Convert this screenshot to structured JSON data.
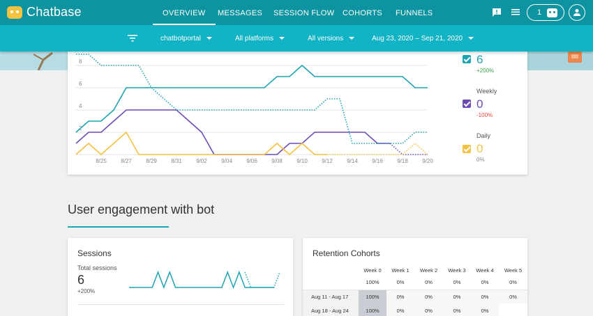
{
  "brand": {
    "name": "Chatbase"
  },
  "nav": {
    "tabs": [
      {
        "label": "OVERVIEW",
        "active": true
      },
      {
        "label": "MESSAGES"
      },
      {
        "label": "SESSION FLOW"
      },
      {
        "label": "COHORTS"
      },
      {
        "label": "FUNNELS"
      }
    ],
    "bot_count": "1",
    "icons": [
      "feedback-icon",
      "menu-list-icon",
      "bot-icon",
      "account-icon"
    ]
  },
  "filters": {
    "bot": "chatbotportal",
    "platforms": "All platforms",
    "versions": "All versions",
    "date_range": "Aug 23, 2020 – Sep 21, 2020"
  },
  "legend": [
    {
      "label": "",
      "value": "6",
      "change": "+200%",
      "color": "#1da4b3",
      "change_color": "#3aa845"
    },
    {
      "label": "Weekly",
      "value": "0",
      "change": "-100%",
      "color": "#6e4bb5",
      "change_color": "#e04a3a"
    },
    {
      "label": "Daily",
      "value": "0",
      "change": "0%",
      "color": "#f5c242",
      "change_color": "#888888"
    }
  ],
  "chart_data": {
    "type": "line",
    "x": [
      "8/23",
      "8/24",
      "8/25",
      "8/26",
      "8/27",
      "8/28",
      "8/29",
      "8/30",
      "8/31",
      "9/01",
      "9/02",
      "9/03",
      "9/04",
      "9/05",
      "9/06",
      "9/07",
      "9/08",
      "9/09",
      "9/10",
      "9/11",
      "9/12",
      "9/13",
      "9/14",
      "9/15",
      "9/16",
      "9/17",
      "9/18",
      "9/19",
      "9/20"
    ],
    "x_tick_labels": [
      "8/25",
      "8/27",
      "8/29",
      "8/31",
      "9/02",
      "9/04",
      "9/06",
      "9/08",
      "9/10",
      "9/12",
      "9/14",
      "9/16",
      "9/18",
      "9/20"
    ],
    "y_tick_labels": [
      "2",
      "4",
      "6",
      "8"
    ],
    "ylim": [
      0,
      9.5
    ],
    "series": [
      {
        "color": "#1da4b3",
        "style": "solid",
        "values": [
          2,
          3,
          3,
          4,
          6,
          6,
          6,
          6,
          6,
          6,
          6,
          6,
          6,
          6,
          6,
          6,
          7,
          7,
          8,
          7,
          7,
          7,
          7,
          7,
          7,
          7,
          7,
          6,
          6
        ]
      },
      {
        "color": "#6e4bb5",
        "style": "solid",
        "values": [
          1,
          2,
          2,
          3,
          4,
          4,
          4,
          4,
          4,
          3,
          2,
          0,
          0,
          0,
          0,
          0,
          0,
          1,
          1,
          2,
          2,
          2,
          2,
          2,
          1,
          1,
          null,
          null,
          null
        ]
      },
      {
        "color": "#f5c242",
        "style": "solid",
        "values": [
          0,
          1,
          0,
          1,
          2,
          0,
          0,
          0,
          0,
          0,
          0,
          0,
          0,
          0,
          0,
          0,
          1,
          0,
          1,
          0,
          0,
          null,
          null,
          null,
          null,
          null,
          null,
          null,
          null
        ]
      },
      {
        "color": "#1da4b3",
        "style": "dotted",
        "values": [
          9,
          9,
          8,
          8,
          8,
          8,
          6,
          5,
          4,
          4,
          4,
          4,
          4,
          4,
          4,
          4,
          4,
          4,
          4,
          4,
          5,
          5,
          1,
          1,
          1,
          1,
          1,
          2,
          2
        ]
      },
      {
        "color": "#6e4bb5",
        "style": "dotted",
        "values": [
          null,
          null,
          null,
          null,
          null,
          null,
          null,
          null,
          null,
          null,
          null,
          null,
          null,
          null,
          null,
          null,
          null,
          null,
          null,
          null,
          null,
          null,
          null,
          null,
          null,
          1,
          0,
          0,
          0
        ]
      },
      {
        "color": "#f5c242",
        "style": "dotted",
        "values": [
          null,
          null,
          null,
          null,
          null,
          null,
          null,
          null,
          null,
          null,
          null,
          null,
          null,
          null,
          null,
          null,
          null,
          null,
          null,
          null,
          0,
          0,
          0,
          0,
          0,
          0,
          0,
          1,
          0
        ]
      }
    ]
  },
  "engagement": {
    "title": "User engagement with bot"
  },
  "sessions": {
    "title": "Sessions",
    "label": "Total sessions",
    "value": "6",
    "change": "+200%",
    "spark": {
      "solid": [
        0,
        0,
        0,
        0,
        0,
        1,
        0,
        1,
        0,
        0,
        0,
        0,
        0,
        0,
        0,
        0,
        0,
        1,
        0,
        1,
        0,
        0,
        0,
        0,
        0,
        0
      ],
      "dotted": [
        null,
        null,
        null,
        null,
        null,
        null,
        null,
        null,
        null,
        null,
        null,
        null,
        null,
        null,
        null,
        null,
        null,
        null,
        null,
        null,
        1,
        0,
        0,
        0,
        0,
        0,
        1
      ]
    }
  },
  "retention": {
    "title": "Retention Cohorts",
    "headers": [
      "Week 0",
      "Week 1",
      "Week 2",
      "Week 3",
      "Week 4",
      "Week 5"
    ],
    "totals": [
      "100%",
      "0%",
      "0%",
      "0%",
      "0%",
      "0%"
    ],
    "rows": [
      {
        "label": "Aug 11 - Aug 17",
        "values": [
          "100%",
          "0%",
          "0%",
          "0%",
          "0%",
          "0%"
        ]
      },
      {
        "label": "Aug 18 - Aug 24",
        "values": [
          "100%",
          "0%",
          "0%",
          "0%",
          "0%",
          ""
        ]
      }
    ]
  }
}
